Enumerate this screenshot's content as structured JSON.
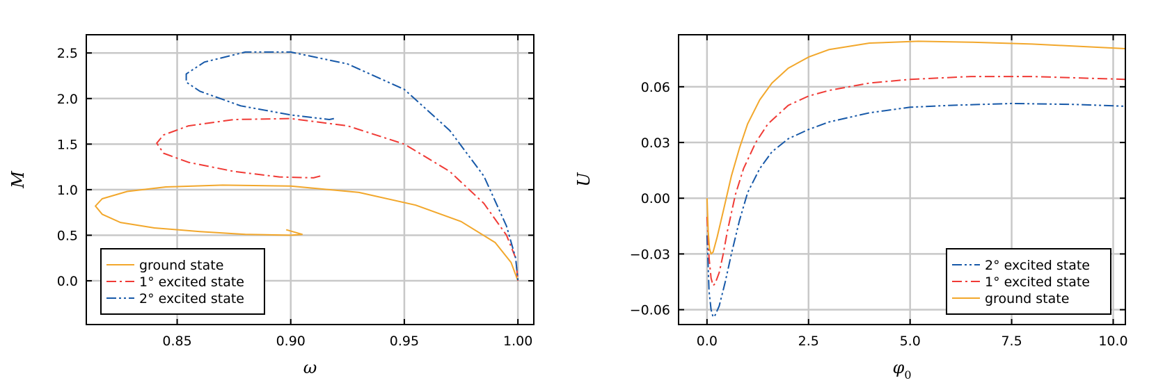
{
  "chart_data": [
    {
      "type": "line",
      "xlabel": "ω",
      "ylabel": "M",
      "xlim": [
        0.81,
        1.007
      ],
      "ylim": [
        -0.48,
        2.7
      ],
      "xticks": [
        0.85,
        0.9,
        0.95,
        1.0
      ],
      "xtick_labels": [
        "0.85",
        "0.90",
        "0.95",
        "1.00"
      ],
      "yticks": [
        0.0,
        0.5,
        1.0,
        1.5,
        2.0,
        2.5
      ],
      "ytick_labels": [
        "0.0",
        "0.5",
        "1.0",
        "1.5",
        "2.0",
        "2.5"
      ],
      "grid": true,
      "legend_position": "bottom-left",
      "legend": [
        {
          "label": "ground state",
          "color": "#f2a72b",
          "dash": "solid"
        },
        {
          "label": "1° excited state",
          "color": "#f03a35",
          "dash": "dashdot"
        },
        {
          "label": "2° excited state",
          "color": "#1658a8",
          "dash": "dashdotdot"
        }
      ],
      "series": [
        {
          "name": "ground state",
          "color": "#f2a72b",
          "dash": "solid",
          "x": [
            0.898,
            0.905,
            0.9,
            0.88,
            0.86,
            0.84,
            0.825,
            0.817,
            0.814,
            0.817,
            0.828,
            0.845,
            0.87,
            0.9,
            0.93,
            0.955,
            0.975,
            0.99,
            0.997,
            1.0
          ],
          "y": [
            0.56,
            0.51,
            0.5,
            0.51,
            0.54,
            0.58,
            0.64,
            0.73,
            0.82,
            0.9,
            0.98,
            1.03,
            1.05,
            1.04,
            0.97,
            0.83,
            0.65,
            0.42,
            0.2,
            0.0
          ]
        },
        {
          "name": "1° excited state",
          "color": "#f03a35",
          "dash": "dashdot",
          "x": [
            0.913,
            0.91,
            0.895,
            0.875,
            0.855,
            0.844,
            0.841,
            0.844,
            0.855,
            0.875,
            0.9,
            0.925,
            0.95,
            0.97,
            0.985,
            0.995,
            0.999,
            1.0
          ],
          "y": [
            1.15,
            1.13,
            1.14,
            1.2,
            1.3,
            1.4,
            1.51,
            1.6,
            1.7,
            1.77,
            1.78,
            1.7,
            1.5,
            1.2,
            0.85,
            0.5,
            0.25,
            0.0
          ]
        },
        {
          "name": "2° excited state",
          "color": "#1658a8",
          "dash": "dashdotdot",
          "x": [
            0.919,
            0.917,
            0.9,
            0.878,
            0.86,
            0.854,
            0.854,
            0.862,
            0.88,
            0.9,
            0.925,
            0.95,
            0.97,
            0.985,
            0.995,
            0.999,
            1.0
          ],
          "y": [
            1.78,
            1.77,
            1.82,
            1.92,
            2.08,
            2.18,
            2.27,
            2.4,
            2.51,
            2.51,
            2.38,
            2.1,
            1.65,
            1.15,
            0.6,
            0.25,
            0.0
          ]
        }
      ]
    },
    {
      "type": "line",
      "xlabel": "φ",
      "xlabel_sub": "0",
      "ylabel": "U",
      "xlim": [
        -0.7,
        10.3
      ],
      "ylim": [
        -0.068,
        0.088
      ],
      "xticks": [
        0.0,
        2.5,
        5.0,
        7.5,
        10.0
      ],
      "xtick_labels": [
        "0.0",
        "2.5",
        "5.0",
        "7.5",
        "10.0"
      ],
      "yticks": [
        -0.06,
        -0.03,
        0.0,
        0.03,
        0.06
      ],
      "ytick_labels": [
        "−0.06",
        "−0.03",
        "0.00",
        "0.03",
        "0.06"
      ],
      "grid": true,
      "legend_position": "bottom-right",
      "legend": [
        {
          "label": "2° excited state",
          "color": "#1658a8",
          "dash": "dashdotdot"
        },
        {
          "label": "1° excited state",
          "color": "#f03a35",
          "dash": "dashdot"
        },
        {
          "label": "ground state",
          "color": "#f2a72b",
          "dash": "solid"
        }
      ],
      "series": [
        {
          "name": "2° excited state",
          "color": "#1658a8",
          "dash": "dashdotdot",
          "x": [
            0.0,
            0.05,
            0.1,
            0.15,
            0.2,
            0.3,
            0.45,
            0.6,
            0.8,
            1.0,
            1.3,
            1.6,
            2.0,
            2.5,
            3.0,
            4.0,
            5.0,
            6.0,
            7.5,
            9.0,
            10.3
          ],
          "y": [
            -0.02,
            -0.05,
            -0.06,
            -0.064,
            -0.063,
            -0.058,
            -0.045,
            -0.03,
            -0.012,
            0.003,
            0.016,
            0.025,
            0.032,
            0.037,
            0.041,
            0.046,
            0.049,
            0.05,
            0.051,
            0.0505,
            0.0495
          ]
        },
        {
          "name": "1° excited state",
          "color": "#f03a35",
          "dash": "dashdot",
          "x": [
            0.0,
            0.05,
            0.1,
            0.15,
            0.2,
            0.3,
            0.4,
            0.5,
            0.7,
            0.9,
            1.2,
            1.5,
            2.0,
            2.5,
            3.0,
            4.0,
            5.0,
            6.5,
            8.0,
            10.3
          ],
          "y": [
            -0.01,
            -0.032,
            -0.043,
            -0.047,
            -0.046,
            -0.04,
            -0.03,
            -0.018,
            0.002,
            0.016,
            0.03,
            0.04,
            0.05,
            0.055,
            0.058,
            0.062,
            0.064,
            0.0655,
            0.0655,
            0.064
          ]
        },
        {
          "name": "ground state",
          "color": "#f2a72b",
          "dash": "solid",
          "x": [
            0.0,
            0.03,
            0.06,
            0.1,
            0.15,
            0.25,
            0.4,
            0.6,
            0.8,
            1.0,
            1.3,
            1.6,
            2.0,
            2.5,
            3.0,
            4.0,
            5.2,
            6.5,
            8.0,
            10.3
          ],
          "y": [
            0.0,
            -0.018,
            -0.027,
            -0.03,
            -0.029,
            -0.021,
            -0.007,
            0.012,
            0.027,
            0.04,
            0.053,
            0.062,
            0.07,
            0.076,
            0.08,
            0.0835,
            0.0845,
            0.084,
            0.083,
            0.0805
          ]
        }
      ]
    }
  ]
}
